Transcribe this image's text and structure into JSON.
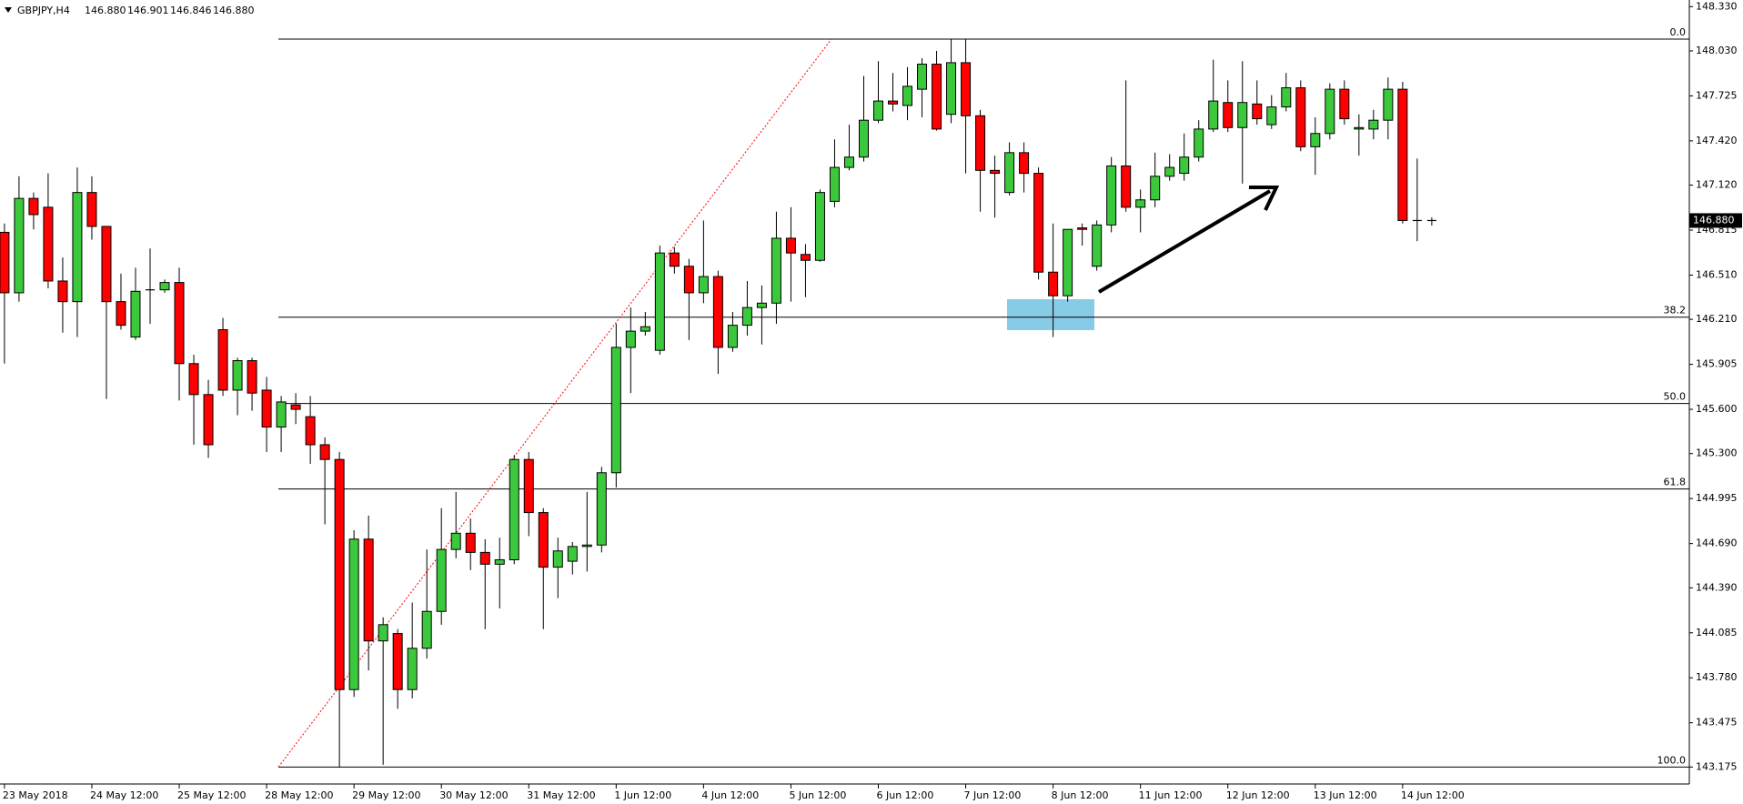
{
  "chart_data": {
    "type": "candlestick",
    "title": "GBPJPY,H4",
    "ohlc_value_labels": [
      "146.880",
      "146.901",
      "146.846",
      "146.880"
    ],
    "categories": [
      "23 May 2018",
      null,
      null,
      null,
      null,
      null,
      "24 May 12:00",
      null,
      null,
      null,
      null,
      null,
      "25 May 12:00",
      null,
      null,
      null,
      null,
      null,
      "28 May 12:00",
      null,
      null,
      null,
      null,
      null,
      "29 May 12:00",
      null,
      null,
      null,
      null,
      null,
      "30 May 12:00",
      null,
      null,
      null,
      null,
      null,
      "31 May 12:00",
      null,
      null,
      null,
      null,
      null,
      "1 Jun 12:00",
      null,
      null,
      null,
      null,
      null,
      "4 Jun 12:00",
      null,
      null,
      null,
      null,
      null,
      "5 Jun 12:00",
      null,
      null,
      null,
      null,
      null,
      "6 Jun 12:00",
      null,
      null,
      null,
      null,
      null,
      "7 Jun 12:00",
      null,
      null,
      null,
      null,
      null,
      "8 Jun 12:00",
      null,
      null,
      null,
      null,
      null,
      "11 Jun 12:00",
      null,
      null,
      null,
      null,
      null,
      "12 Jun 12:00",
      null,
      null,
      null,
      null,
      null,
      "13 Jun 12:00",
      null,
      null,
      null,
      null,
      null,
      "14 Jun 12:00",
      null,
      null
    ],
    "open": [
      146.8,
      146.39,
      147.03,
      146.97,
      146.47,
      146.33,
      147.07,
      146.84,
      146.33,
      146.09,
      146.41,
      146.41,
      146.46,
      145.91,
      145.7,
      146.14,
      145.73,
      145.93,
      145.73,
      145.48,
      145.63,
      145.55,
      145.36,
      145.26,
      143.7,
      144.72,
      144.03,
      144.08,
      143.7,
      143.98,
      144.23,
      144.65,
      144.76,
      144.63,
      144.55,
      144.58,
      145.26,
      144.9,
      144.53,
      144.57,
      144.67,
      144.68,
      145.17,
      146.02,
      146.13,
      146.0,
      146.66,
      146.57,
      146.39,
      146.5,
      146.02,
      146.17,
      146.29,
      146.32,
      146.76,
      146.65,
      146.61,
      147.01,
      147.24,
      147.31,
      147.56,
      147.69,
      147.66,
      147.77,
      147.94,
      147.6,
      147.95,
      147.59,
      147.22,
      147.07,
      147.34,
      147.2,
      146.53,
      146.37,
      146.83,
      146.57,
      146.85,
      147.25,
      146.97,
      147.02,
      147.18,
      147.2,
      147.31,
      147.5,
      147.68,
      147.51,
      147.67,
      147.53,
      147.65,
      147.78,
      147.38,
      147.47,
      147.77,
      147.5,
      147.5,
      147.56,
      147.77,
      146.88,
      146.88
    ],
    "high": [
      146.86,
      147.18,
      147.07,
      147.2,
      146.63,
      147.24,
      147.18,
      146.84,
      146.52,
      146.56,
      146.69,
      146.48,
      146.56,
      145.97,
      145.8,
      146.22,
      145.95,
      145.95,
      145.82,
      145.69,
      145.71,
      145.69,
      145.41,
      145.31,
      144.78,
      144.88,
      144.19,
      144.11,
      144.29,
      144.65,
      144.93,
      145.04,
      144.86,
      144.72,
      144.73,
      145.29,
      145.31,
      144.93,
      144.73,
      144.7,
      145.04,
      145.21,
      146.18,
      146.29,
      146.26,
      146.71,
      146.7,
      146.62,
      146.88,
      146.54,
      146.26,
      146.47,
      146.44,
      146.94,
      146.97,
      146.72,
      147.09,
      147.43,
      147.53,
      147.86,
      147.96,
      147.88,
      147.92,
      147.98,
      148.03,
      148.11,
      148.11,
      147.63,
      147.32,
      147.41,
      147.41,
      147.24,
      146.86,
      146.82,
      146.86,
      146.88,
      147.31,
      147.83,
      147.09,
      147.34,
      147.33,
      147.47,
      147.56,
      147.97,
      147.83,
      147.96,
      147.83,
      147.73,
      147.88,
      147.83,
      147.58,
      147.81,
      147.83,
      147.6,
      147.63,
      147.85,
      147.82,
      147.3,
      146.901
    ],
    "low": [
      145.91,
      146.33,
      146.82,
      146.42,
      146.12,
      146.09,
      146.75,
      145.67,
      146.14,
      146.07,
      146.18,
      146.39,
      145.66,
      145.36,
      145.27,
      145.69,
      145.56,
      145.59,
      145.31,
      145.31,
      145.5,
      145.23,
      144.82,
      143.17,
      143.65,
      143.83,
      143.19,
      143.57,
      143.64,
      143.91,
      144.14,
      144.59,
      144.51,
      144.11,
      144.25,
      144.55,
      144.74,
      144.11,
      144.32,
      144.48,
      144.5,
      144.63,
      145.07,
      145.71,
      146.1,
      145.97,
      146.52,
      146.07,
      146.32,
      145.84,
      145.99,
      146.1,
      146.04,
      146.18,
      146.33,
      146.36,
      146.6,
      146.97,
      147.22,
      147.28,
      147.54,
      147.62,
      147.56,
      147.58,
      147.49,
      147.54,
      147.2,
      146.94,
      146.9,
      147.05,
      147.07,
      146.48,
      146.09,
      146.33,
      146.71,
      146.54,
      146.8,
      146.94,
      146.8,
      146.97,
      147.15,
      147.15,
      147.28,
      147.48,
      147.48,
      147.13,
      147.53,
      147.5,
      147.62,
      147.35,
      147.19,
      147.43,
      147.53,
      147.32,
      147.43,
      147.43,
      146.86,
      146.74,
      146.846
    ],
    "close": [
      146.39,
      147.03,
      146.92,
      146.47,
      146.33,
      147.07,
      146.84,
      146.33,
      146.17,
      146.4,
      146.41,
      146.46,
      145.91,
      145.7,
      145.36,
      145.73,
      145.93,
      145.71,
      145.48,
      145.65,
      145.6,
      145.36,
      145.26,
      143.7,
      144.72,
      144.03,
      144.14,
      143.7,
      143.98,
      144.23,
      144.65,
      144.76,
      144.63,
      144.55,
      144.58,
      145.26,
      144.9,
      144.53,
      144.64,
      144.67,
      144.68,
      145.17,
      146.02,
      146.13,
      146.16,
      146.66,
      146.57,
      146.39,
      146.5,
      146.02,
      146.17,
      146.29,
      146.32,
      146.76,
      146.66,
      146.61,
      147.07,
      147.24,
      147.31,
      147.56,
      147.69,
      147.67,
      147.79,
      147.94,
      147.5,
      147.95,
      147.59,
      147.22,
      147.2,
      147.34,
      147.2,
      146.53,
      146.37,
      146.82,
      146.82,
      146.85,
      147.25,
      146.97,
      147.02,
      147.18,
      147.24,
      147.31,
      147.5,
      147.69,
      147.51,
      147.68,
      147.57,
      147.65,
      147.78,
      147.38,
      147.47,
      147.77,
      147.57,
      147.51,
      147.56,
      147.77,
      146.88,
      146.88,
      146.88
    ],
    "up_color": "#3cc83c",
    "down_color": "#ff0000",
    "ylim": [
      143.06,
      148.375
    ],
    "yticks": [
      {
        "value": 148.33,
        "label": "148.330"
      },
      {
        "value": 148.03,
        "label": "148.030"
      },
      147.725,
      {
        "value": 147.42,
        "label": "147.420"
      },
      {
        "value": 147.12,
        "label": "147.120"
      },
      146.815,
      {
        "value": 146.51,
        "label": "146.510"
      },
      {
        "value": 146.21,
        "label": "146.210"
      },
      145.905,
      {
        "value": 145.6,
        "label": "145.600"
      },
      {
        "value": 145.3,
        "label": "145.300"
      },
      144.995,
      {
        "value": 144.69,
        "label": "144.690"
      },
      {
        "value": 144.39,
        "label": "144.390"
      },
      144.085,
      {
        "value": 143.78,
        "label": "143.780"
      },
      143.475,
      143.175
    ],
    "fib_levels": [
      {
        "label": "0.0",
        "price": 148.11
      },
      {
        "label": "38.2",
        "price": 146.225
      },
      {
        "label": "50.0",
        "price": 145.64
      },
      {
        "label": "61.8",
        "price": 145.06
      },
      {
        "label": "100.0",
        "price": 143.175
      }
    ],
    "last_price": {
      "value": 146.88,
      "label": "146.880"
    }
  }
}
